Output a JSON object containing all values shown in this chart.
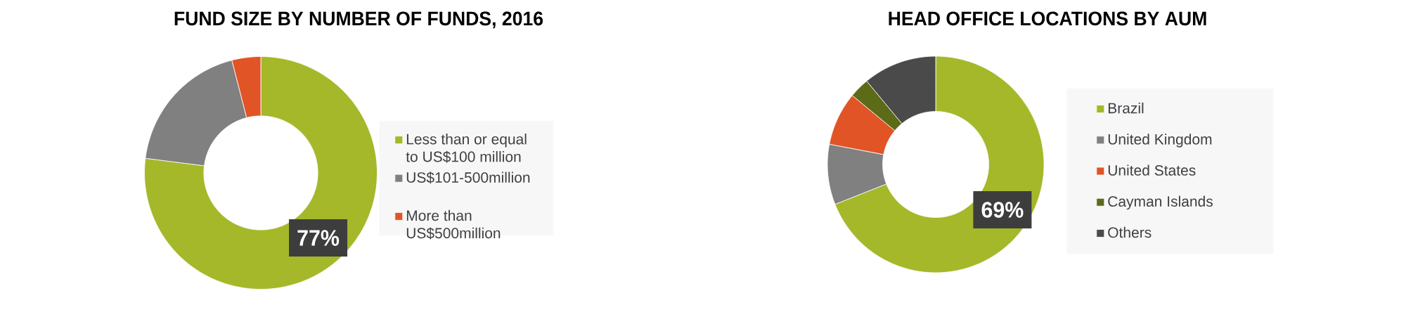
{
  "chart_data": [
    {
      "type": "donut",
      "title": "FUND SIZE BY NUMBER OF FUNDS, 2016",
      "categories": [
        "Less than or equal to US$100 million",
        "US$101-500million",
        "More than US$500million"
      ],
      "values": [
        77,
        19,
        4
      ],
      "colors": [
        "#a5b82a",
        "#808080",
        "#e15426"
      ],
      "value_labels": [
        "77%",
        null,
        null
      ],
      "legend": "right"
    },
    {
      "type": "donut",
      "title": "HEAD OFFICE LOCATIONS BY AUM",
      "categories": [
        "Brazil",
        "United Kingdom",
        "United States",
        "Cayman Islands",
        "Others"
      ],
      "values": [
        69,
        9,
        8,
        3,
        11
      ],
      "colors": [
        "#a5b82a",
        "#808080",
        "#e15426",
        "#5c6b17",
        "#4a4a4a"
      ],
      "value_labels": [
        "69%",
        null,
        null,
        null,
        null
      ],
      "legend": "right"
    }
  ]
}
